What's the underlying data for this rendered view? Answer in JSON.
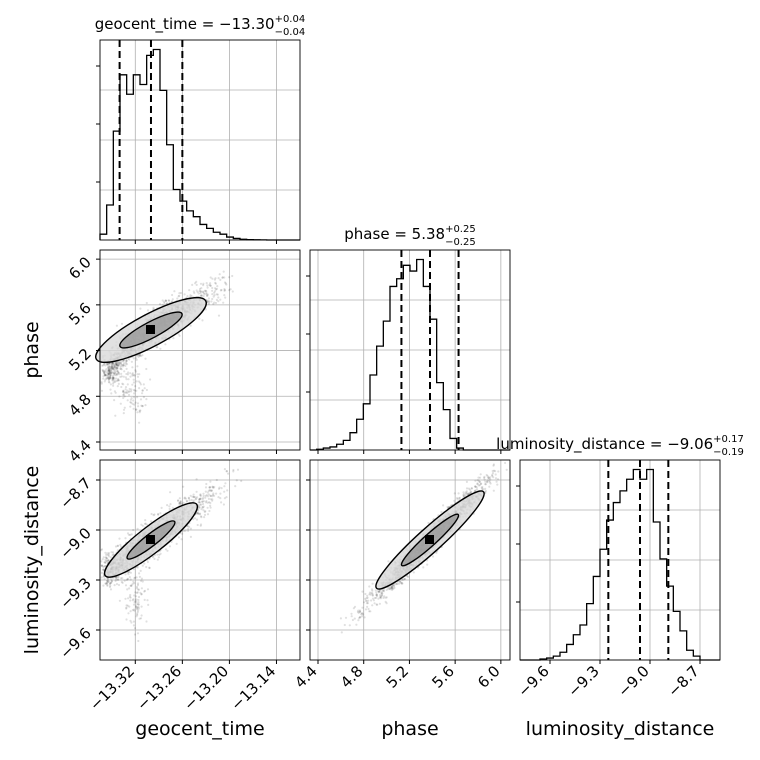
{
  "chart_data": {
    "type": "corner",
    "parameters": [
      "geocent_time",
      "phase",
      "luminosity_distance"
    ],
    "ranges": {
      "geocent_time": [
        -13.365,
        -13.11
      ],
      "phase": [
        4.33,
        6.08
      ],
      "luminosity_distance": [
        -9.78,
        -8.58
      ]
    },
    "ticks": {
      "geocent_time": [
        -13.32,
        -13.26,
        -13.2,
        -13.14
      ],
      "phase": [
        4.4,
        4.8,
        5.2,
        5.6,
        6.0
      ],
      "luminosity_distance": [
        -9.6,
        -9.3,
        -9.0,
        -8.7
      ]
    },
    "tick_labels": {
      "geocent_time": [
        "−13.32",
        "−13.26",
        "−13.20",
        "−13.14"
      ],
      "phase": [
        "4.4",
        "4.8",
        "5.2",
        "5.6",
        "6.0"
      ],
      "luminosity_distance": [
        "−9.6",
        "−9.3",
        "−9.0",
        "−8.7"
      ]
    },
    "titles": [
      {
        "param": "geocent_time",
        "main": "geocent_time = −13.30",
        "sup": "+0.04",
        "sub": "−0.04"
      },
      {
        "param": "phase",
        "main": "phase = 5.38",
        "sup": "+0.25",
        "sub": "−0.25"
      },
      {
        "param": "luminosity_distance",
        "main": "luminosity_distance = −9.06",
        "sup": "+0.17",
        "sub": "−0.19"
      }
    ],
    "quantiles": {
      "geocent_time": [
        -13.34,
        -13.3,
        -13.26
      ],
      "phase": [
        5.13,
        5.38,
        5.63
      ],
      "luminosity_distance": [
        -9.25,
        -9.06,
        -8.89
      ]
    },
    "histograms": {
      "geocent_time": {
        "edges": [
          -13.365,
          -13.3565,
          -13.348,
          -13.3395,
          -13.331,
          -13.3225,
          -13.314,
          -13.3055,
          -13.297,
          -13.2885,
          -13.28,
          -13.2715,
          -13.263,
          -13.2545,
          -13.246,
          -13.2375,
          -13.229,
          -13.2205,
          -13.212,
          -13.2035,
          -13.195,
          -13.1865,
          -13.178,
          -13.1695,
          -13.161,
          -13.1525,
          -13.144,
          -13.1355,
          -13.127,
          -13.1185,
          -13.11
        ],
        "counts": [
          0.03,
          0.18,
          0.56,
          0.85,
          0.75,
          0.85,
          0.8,
          0.95,
          0.98,
          0.77,
          0.49,
          0.26,
          0.2,
          0.15,
          0.12,
          0.08,
          0.06,
          0.04,
          0.03,
          0.015,
          0.008,
          0.004,
          0.002,
          0.001,
          0.0005,
          0,
          0,
          0,
          0,
          0
        ]
      },
      "phase": {
        "edges": [
          4.33,
          4.3883,
          4.4467,
          4.505,
          4.5633,
          4.6217,
          4.68,
          4.7383,
          4.7967,
          4.855,
          4.9133,
          4.9717,
          5.03,
          5.0883,
          5.1467,
          5.205,
          5.2633,
          5.3217,
          5.38,
          5.4383,
          5.4967,
          5.555,
          5.6133,
          5.6717,
          5.73,
          5.7883,
          5.8467,
          5.905,
          5.9633,
          6.0217,
          6.08
        ],
        "counts": [
          0,
          0.004,
          0.01,
          0.016,
          0.03,
          0.05,
          0.09,
          0.16,
          0.24,
          0.39,
          0.54,
          0.67,
          0.85,
          0.89,
          0.96,
          0.93,
          0.99,
          0.85,
          0.68,
          0.35,
          0.21,
          0.06,
          0.01,
          0,
          0,
          0,
          0,
          0,
          0,
          0
        ]
      },
      "luminosity_distance": {
        "edges": [
          -9.78,
          -9.74,
          -9.7,
          -9.66,
          -9.62,
          -9.58,
          -9.54,
          -9.5,
          -9.46,
          -9.42,
          -9.38,
          -9.34,
          -9.3,
          -9.26,
          -9.22,
          -9.18,
          -9.14,
          -9.1,
          -9.06,
          -9.02,
          -8.98,
          -8.94,
          -8.9,
          -8.86,
          -8.82,
          -8.78,
          -8.74,
          -8.7,
          -8.66,
          -8.62,
          -8.58
        ],
        "counts": [
          0,
          0,
          0,
          0.005,
          0.01,
          0.02,
          0.04,
          0.08,
          0.13,
          0.18,
          0.29,
          0.43,
          0.57,
          0.72,
          0.81,
          0.87,
          0.93,
          0.98,
          0.93,
          0.98,
          0.71,
          0.52,
          0.38,
          0.25,
          0.15,
          0.05,
          0.02,
          0,
          0,
          0
        ]
      }
    },
    "pairs": [
      {
        "x": "geocent_time",
        "y": "phase"
      },
      {
        "x": "geocent_time",
        "y": "luminosity_distance"
      },
      {
        "x": "phase",
        "y": "luminosity_distance"
      }
    ],
    "grid": true
  }
}
